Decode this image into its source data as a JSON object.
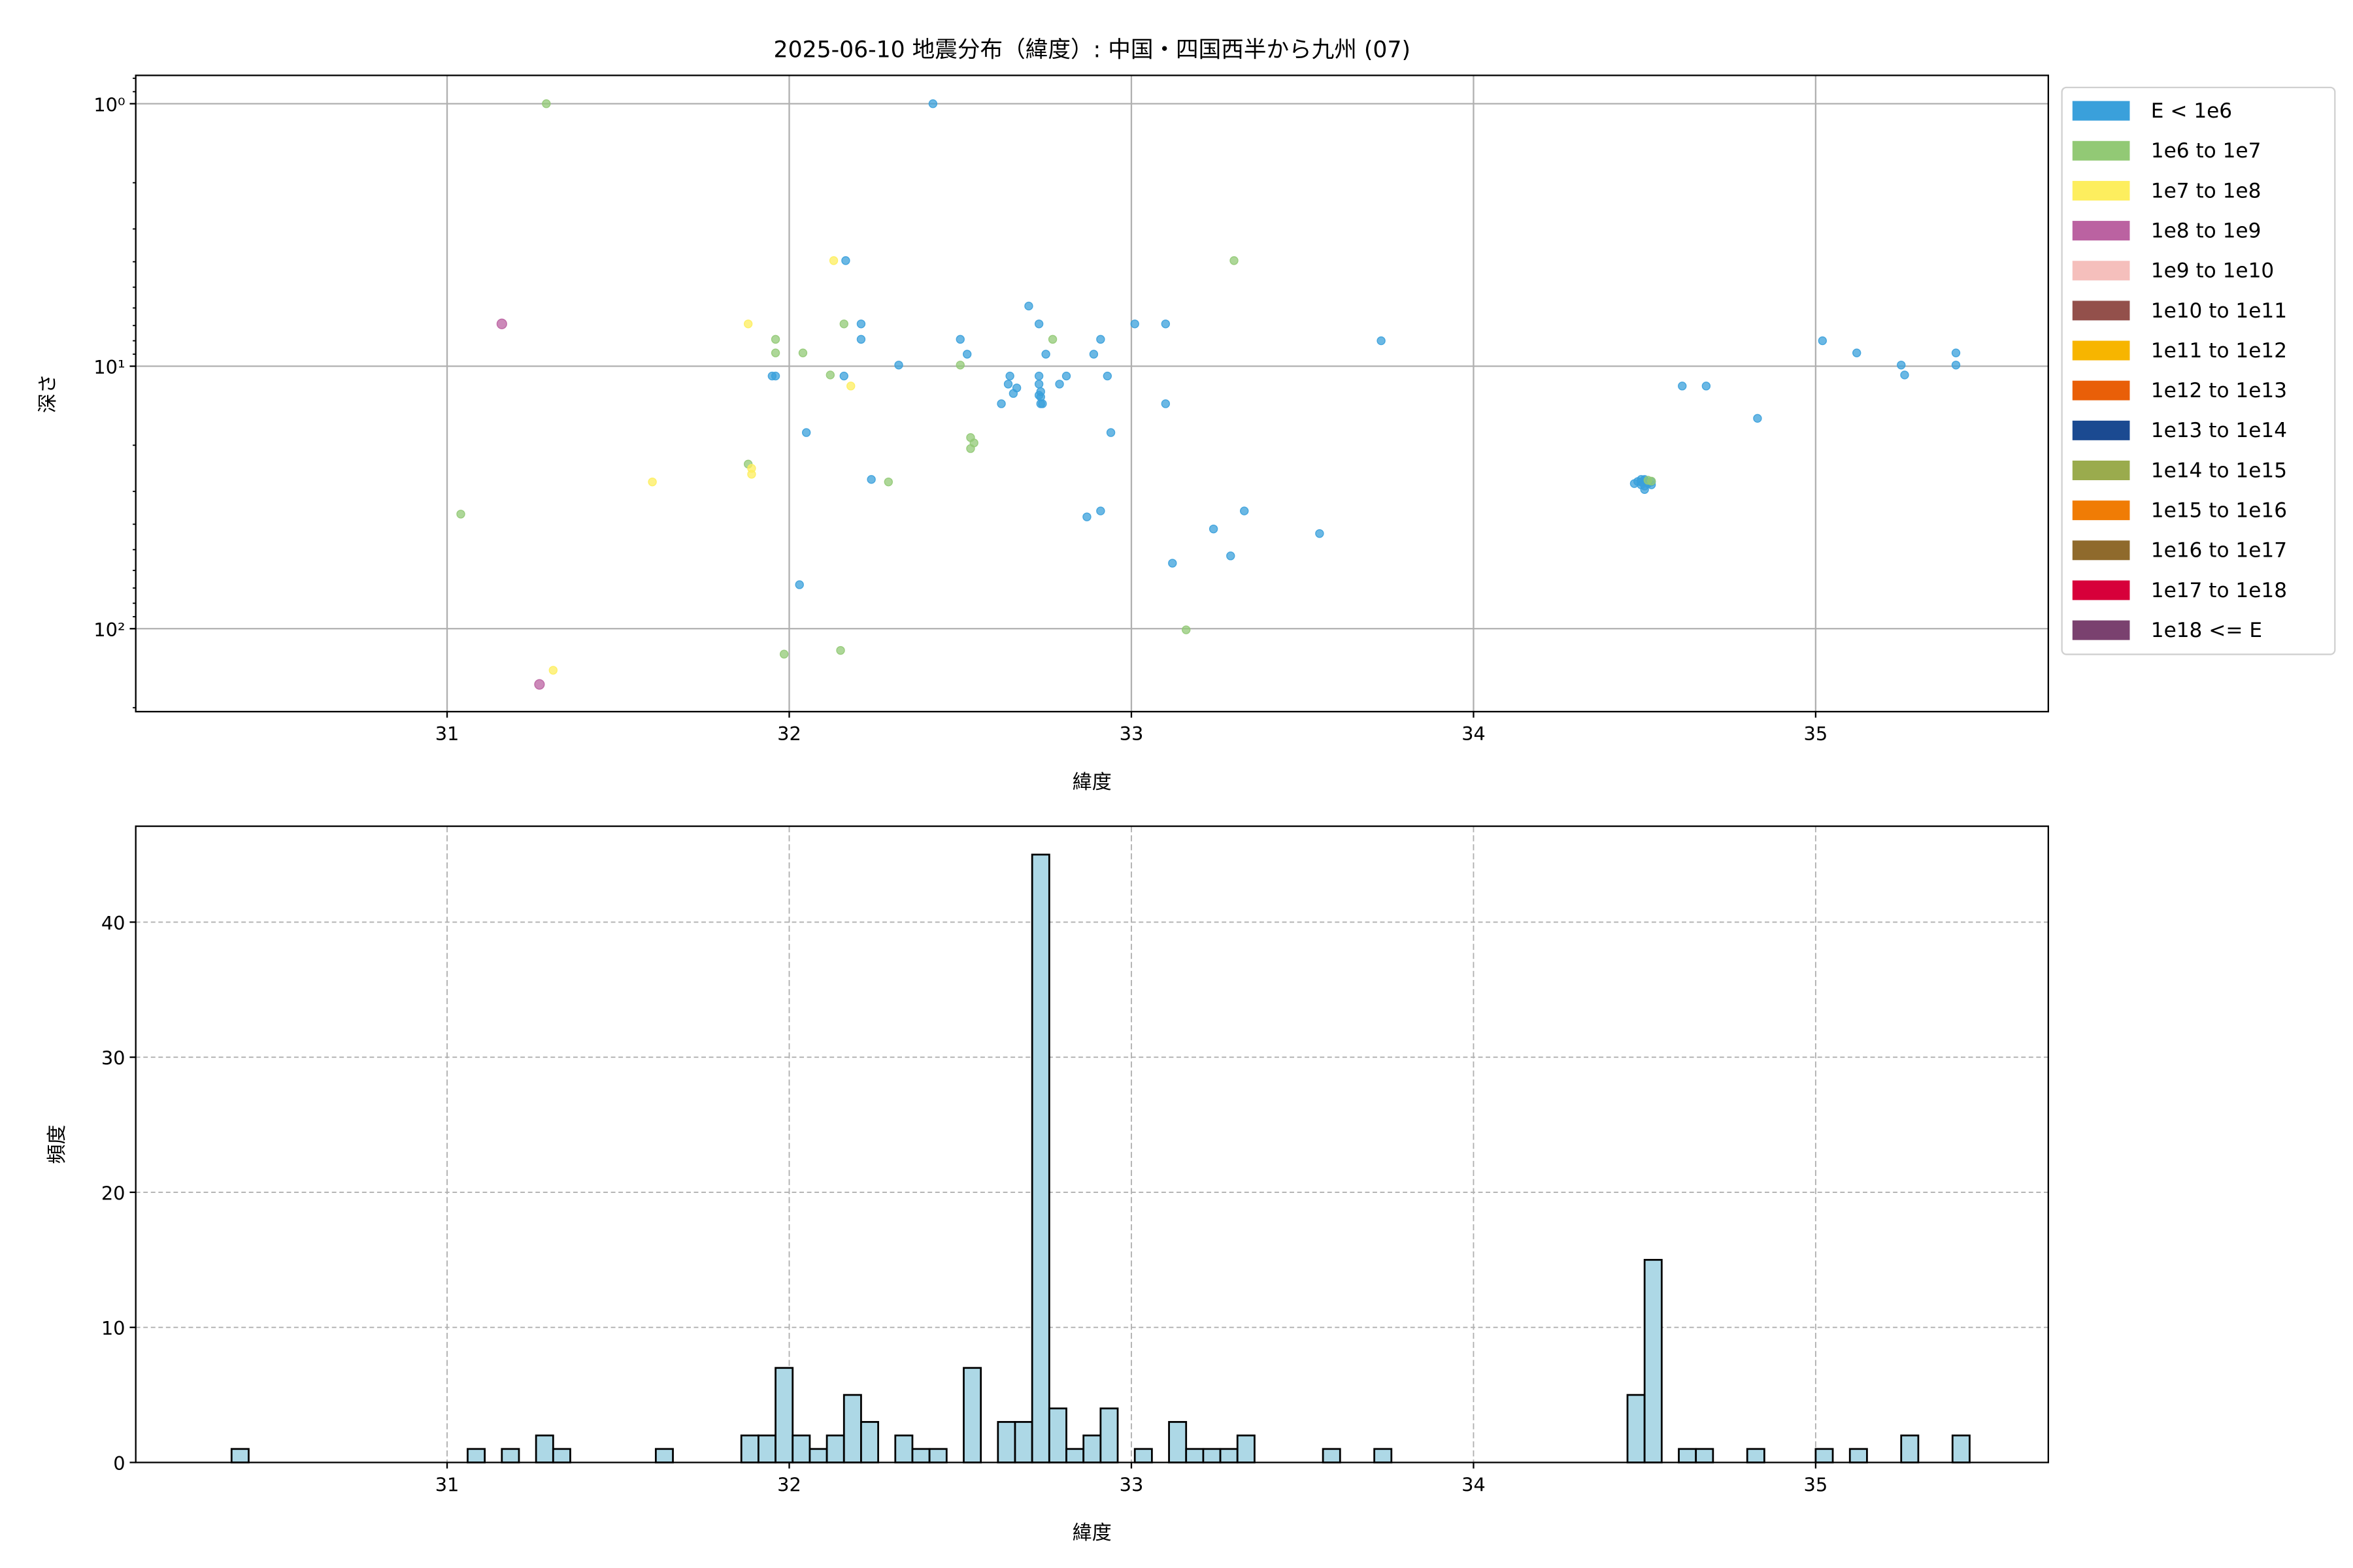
{
  "chart_data": [
    {
      "type": "scatter",
      "title": "2025-06-10 地震分布（緯度）: 中国・四国西半から九州 (07)",
      "xlabel": "緯度",
      "ylabel": "深さ",
      "xlim": [
        30.09,
        35.68
      ],
      "ylim": [
        0.78,
        207
      ],
      "yscale": "log",
      "yinverted": true,
      "grid": true,
      "xticks": [
        "31",
        "32",
        "33",
        "34",
        "35"
      ],
      "yticks": [
        {
          "value": 1,
          "label": "10⁰"
        },
        {
          "value": 10,
          "label": "10¹"
        },
        {
          "value": 100,
          "label": "10²"
        }
      ],
      "legend_position": "outside-right",
      "legend": [
        {
          "label": "E < 1e6",
          "color": "#3aa0db"
        },
        {
          "label": "1e6 to 1e7",
          "color": "#92c975"
        },
        {
          "label": "1e7 to 1e8",
          "color": "#fdee5e"
        },
        {
          "label": "1e8 to 1e9",
          "color": "#bb62a1"
        },
        {
          "label": "1e9 to 1e10",
          "color": "#f5bfbc"
        },
        {
          "label": "1e10 to 1e11",
          "color": "#93504b"
        },
        {
          "label": "1e11 to 1e12",
          "color": "#f7b500"
        },
        {
          "label": "1e12 to 1e13",
          "color": "#e95f08"
        },
        {
          "label": "1e13 to 1e14",
          "color": "#1b4a91"
        },
        {
          "label": "1e14 to 1e15",
          "color": "#9aab4d"
        },
        {
          "label": "1e15 to 1e16",
          "color": "#f07c05"
        },
        {
          "label": "1e16 to 1e17",
          "color": "#8f6a2c"
        },
        {
          "label": "1e17 to 1e18",
          "color": "#d7003a"
        },
        {
          "label": "1e18 <= E",
          "color": "#7a416f"
        }
      ],
      "points": [
        [
          32.42,
          1.0,
          0
        ],
        [
          32.165,
          3.96,
          0
        ],
        [
          32.7,
          5.9,
          0
        ],
        [
          32.21,
          6.9,
          0
        ],
        [
          32.73,
          6.9,
          0
        ],
        [
          32.5,
          7.9,
          0
        ],
        [
          32.52,
          9.0,
          0
        ],
        [
          32.32,
          9.9,
          0
        ],
        [
          32.21,
          7.9,
          0
        ],
        [
          32.91,
          7.9,
          0
        ],
        [
          33.01,
          6.9,
          0
        ],
        [
          33.1,
          6.9,
          0
        ],
        [
          33.73,
          8.0,
          0
        ],
        [
          32.75,
          9.0,
          0
        ],
        [
          32.89,
          9.0,
          0
        ],
        [
          31.95,
          10.9,
          0
        ],
        [
          31.96,
          10.9,
          0
        ],
        [
          32.16,
          10.9,
          0
        ],
        [
          32.645,
          10.9,
          0
        ],
        [
          32.64,
          11.7,
          0
        ],
        [
          32.655,
          12.7,
          0
        ],
        [
          32.665,
          12.1,
          0
        ],
        [
          32.73,
          10.9,
          0
        ],
        [
          32.73,
          11.7,
          0
        ],
        [
          32.735,
          12.5,
          0
        ],
        [
          32.735,
          13.1,
          0
        ],
        [
          32.735,
          13.9,
          0
        ],
        [
          32.74,
          13.9,
          0
        ],
        [
          32.73,
          12.9,
          0
        ],
        [
          32.81,
          10.9,
          0
        ],
        [
          32.79,
          11.7,
          0
        ],
        [
          32.93,
          10.9,
          0
        ],
        [
          32.62,
          13.9,
          0
        ],
        [
          33.1,
          13.9,
          0
        ],
        [
          32.05,
          17.9,
          0
        ],
        [
          32.94,
          17.9,
          0
        ],
        [
          32.24,
          27,
          0
        ],
        [
          32.87,
          37.5,
          0
        ],
        [
          32.91,
          35.6,
          0
        ],
        [
          33.33,
          35.6,
          0
        ],
        [
          33.24,
          41.7,
          0
        ],
        [
          33.55,
          43.4,
          0
        ],
        [
          33.29,
          52.8,
          0
        ],
        [
          33.12,
          56.3,
          0
        ],
        [
          32.03,
          68,
          0
        ],
        [
          35.02,
          8.0,
          0
        ],
        [
          35.12,
          8.9,
          0
        ],
        [
          35.25,
          9.9,
          0
        ],
        [
          35.26,
          10.8,
          0
        ],
        [
          35.41,
          8.9,
          0
        ],
        [
          35.41,
          9.9,
          0
        ],
        [
          34.61,
          11.9,
          0
        ],
        [
          34.68,
          11.9,
          0
        ],
        [
          34.83,
          15.8,
          0
        ],
        [
          34.48,
          27.5,
          0
        ],
        [
          34.49,
          27.0,
          0
        ],
        [
          34.5,
          27.3,
          0
        ],
        [
          34.51,
          27.8,
          0
        ],
        [
          34.49,
          28.3,
          0
        ],
        [
          34.5,
          29.5,
          0
        ],
        [
          34.52,
          27.6,
          0
        ],
        [
          34.47,
          28.0,
          0
        ],
        [
          34.5,
          28.6,
          0
        ],
        [
          34.51,
          28.0,
          0
        ],
        [
          34.49,
          27.6,
          0
        ],
        [
          34.52,
          28.3,
          0
        ],
        [
          34.5,
          27.0,
          0
        ],
        [
          34.51,
          27.2,
          1
        ],
        [
          34.52,
          27.4,
          1
        ],
        [
          31.29,
          1.0,
          1
        ],
        [
          33.3,
          3.96,
          1
        ],
        [
          31.96,
          7.9,
          1
        ],
        [
          32.16,
          6.9,
          1
        ],
        [
          31.96,
          8.9,
          1
        ],
        [
          32.04,
          8.9,
          1
        ],
        [
          32.77,
          7.9,
          1
        ],
        [
          32.5,
          9.9,
          1
        ],
        [
          32.12,
          10.8,
          1
        ],
        [
          32.53,
          18.7,
          1
        ],
        [
          32.54,
          19.6,
          1
        ],
        [
          32.53,
          20.6,
          1
        ],
        [
          31.88,
          23.6,
          1
        ],
        [
          32.29,
          27.6,
          1
        ],
        [
          31.04,
          36.6,
          1
        ],
        [
          33.16,
          101,
          1
        ],
        [
          31.985,
          125,
          1
        ],
        [
          32.15,
          121,
          1
        ],
        [
          32.13,
          3.96,
          2
        ],
        [
          31.88,
          6.9,
          2
        ],
        [
          32.18,
          11.9,
          2
        ],
        [
          31.6,
          27.6,
          2
        ],
        [
          31.89,
          24.5,
          2
        ],
        [
          31.89,
          25.8,
          2
        ],
        [
          31.31,
          144,
          2
        ],
        [
          31.16,
          6.9,
          3
        ],
        [
          31.27,
          163,
          3
        ]
      ]
    },
    {
      "type": "bar",
      "subtype": "histogram",
      "xlabel": "緯度",
      "ylabel": "頻度",
      "xlim": [
        30.09,
        35.68
      ],
      "ylim": [
        0,
        47.1
      ],
      "grid": true,
      "grid_style": "dashed",
      "bar_color": "#add8e6",
      "edge_color": "#000000",
      "xticks": [
        "31",
        "32",
        "33",
        "34",
        "35"
      ],
      "yticks": [
        "0",
        "10",
        "20",
        "30",
        "40"
      ],
      "bin_width": 0.05,
      "bins": [
        [
          30.37,
          1
        ],
        [
          31.06,
          1
        ],
        [
          31.16,
          1
        ],
        [
          31.26,
          2
        ],
        [
          31.31,
          1
        ],
        [
          31.61,
          1
        ],
        [
          31.86,
          2
        ],
        [
          31.91,
          2
        ],
        [
          31.96,
          7
        ],
        [
          32.01,
          2
        ],
        [
          32.06,
          1
        ],
        [
          32.11,
          2
        ],
        [
          32.16,
          5
        ],
        [
          32.21,
          3
        ],
        [
          32.31,
          2
        ],
        [
          32.36,
          1
        ],
        [
          32.41,
          1
        ],
        [
          32.51,
          7
        ],
        [
          32.61,
          3
        ],
        [
          32.66,
          3
        ],
        [
          32.71,
          45
        ],
        [
          32.76,
          4
        ],
        [
          32.81,
          1
        ],
        [
          32.86,
          2
        ],
        [
          32.91,
          4
        ],
        [
          33.01,
          1
        ],
        [
          33.11,
          3
        ],
        [
          33.16,
          1
        ],
        [
          33.21,
          1
        ],
        [
          33.26,
          1
        ],
        [
          33.31,
          2
        ],
        [
          33.56,
          1
        ],
        [
          33.71,
          1
        ],
        [
          34.45,
          5
        ],
        [
          34.5,
          15
        ],
        [
          34.6,
          1
        ],
        [
          34.65,
          1
        ],
        [
          34.8,
          1
        ],
        [
          35.0,
          1
        ],
        [
          35.1,
          1
        ],
        [
          35.25,
          2
        ],
        [
          35.4,
          2
        ]
      ]
    }
  ]
}
